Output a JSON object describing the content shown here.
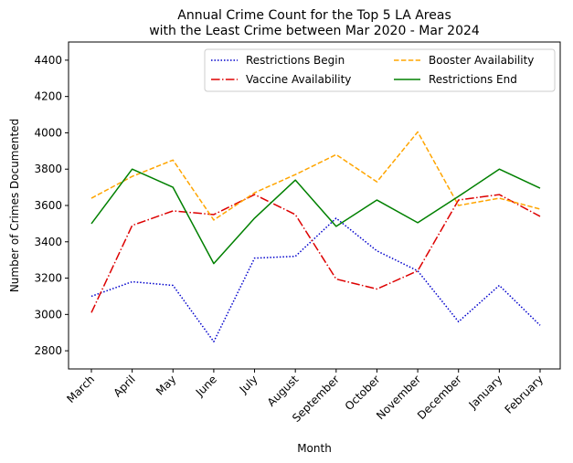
{
  "chart_data": {
    "type": "line",
    "title": "Annual Crime Count for the Top 5 LA Areas\nwith the Least Crime between Mar 2020 - Mar 2024",
    "title_lines": [
      "Annual Crime Count for the Top 5 LA Areas",
      "with the Least Crime between Mar 2020 - Mar 2024"
    ],
    "xlabel": "Month",
    "ylabel": "Number of Crimes Documented",
    "categories": [
      "March",
      "April",
      "May",
      "June",
      "July",
      "August",
      "September",
      "October",
      "November",
      "December",
      "January",
      "February"
    ],
    "ylim": [
      2700,
      4500
    ],
    "yticks": [
      2800,
      3000,
      3200,
      3400,
      3600,
      3800,
      4000,
      4200,
      4400
    ],
    "grid": false,
    "legend_position": "top-right",
    "legend_columns": 2,
    "series": [
      {
        "name": "Restrictions Begin",
        "color": "#0000cc",
        "style": "dotted",
        "values": [
          3100,
          3180,
          3160,
          2850,
          3310,
          3320,
          3530,
          3350,
          3240,
          2960,
          3160,
          2940
        ]
      },
      {
        "name": "Vaccine Availability",
        "color": "#dd0000",
        "style": "dashdot",
        "values": [
          3010,
          3490,
          3570,
          3550,
          3660,
          3550,
          3195,
          3140,
          3240,
          3630,
          3660,
          3540
        ]
      },
      {
        "name": "Booster Availability",
        "color": "#ffa500",
        "style": "dashed",
        "values": [
          3640,
          3760,
          3850,
          3520,
          3670,
          3770,
          3880,
          3730,
          4005,
          3600,
          3640,
          3580
        ]
      },
      {
        "name": "Restrictions End",
        "color": "#008000",
        "style": "solid",
        "values": [
          3500,
          3800,
          3700,
          3280,
          3530,
          3740,
          3485,
          3630,
          3505,
          3650,
          3800,
          3695
        ]
      }
    ]
  }
}
